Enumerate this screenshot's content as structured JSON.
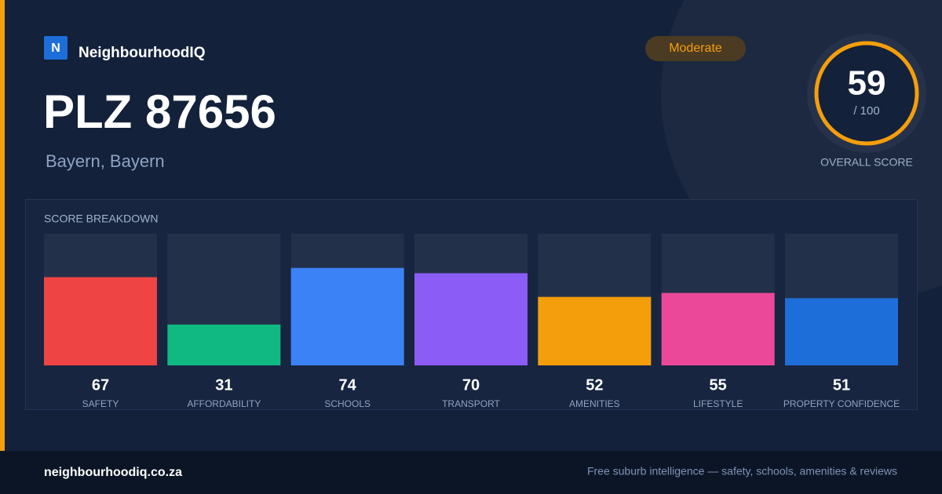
{
  "brand": {
    "initial": "N",
    "name": "NeighbourhoodIQ"
  },
  "title": "PLZ 87656",
  "subtitle": "Bayern, Bayern",
  "badge": "Moderate",
  "score": {
    "value": 59,
    "max_label": "/ 100",
    "label": "OVERALL SCORE"
  },
  "chart_data": {
    "type": "bar",
    "title": "SCORE BREAKDOWN",
    "categories": [
      "SAFETY",
      "AFFORDABILITY",
      "SCHOOLS",
      "TRANSPORT",
      "AMENITIES",
      "LIFESTYLE",
      "PROPERTY CONFIDENCE"
    ],
    "values": [
      67,
      31,
      74,
      70,
      52,
      55,
      51
    ],
    "colors": [
      "#ef4444",
      "#10b981",
      "#3b82f6",
      "#8b5cf6",
      "#f59e0b",
      "#ec4899",
      "#1d6ed8"
    ],
    "ylim": [
      0,
      100
    ]
  },
  "footer": {
    "site": "neighbourhoodiq.co.za",
    "tagline": "Free suburb intelligence — safety, schools, amenities & reviews"
  }
}
